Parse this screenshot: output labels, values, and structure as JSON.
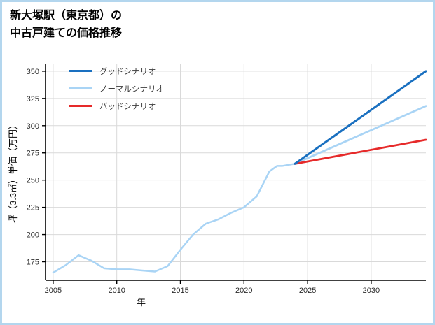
{
  "page": {
    "border_color": "#b3d6ee",
    "background": "#ffffff"
  },
  "title": {
    "line1": "新大塚駅（東京都）の",
    "line2": "中古戸建ての価格推移"
  },
  "chart_data": {
    "type": "line",
    "title": "新大塚駅（東京都）の中古戸建ての価格推移",
    "xlabel": "年",
    "ylabel": "坪（3.3㎡）単価（万円）",
    "xlim": [
      2004.4,
      2034.3
    ],
    "ylim": [
      158,
      357
    ],
    "xticks": [
      2005,
      2010,
      2015,
      2020,
      2025,
      2030
    ],
    "yticks": [
      175,
      200,
      225,
      250,
      275,
      300,
      325,
      350
    ],
    "grid": true,
    "grid_color": "#d9d9d9",
    "axis_color": "#000000",
    "legend_position": "upper-left-inside",
    "series": [
      {
        "id": "history",
        "color": "#a9d4f5",
        "legend": false,
        "width": 2.5,
        "x": [
          2005,
          2006,
          2007,
          2008,
          2009,
          2010,
          2011,
          2012,
          2013,
          2014,
          2015,
          2016,
          2017,
          2018,
          2019,
          2020,
          2021,
          2022,
          2022.6,
          2023,
          2024
        ],
        "y": [
          165,
          172,
          181,
          176,
          169,
          168,
          168,
          167,
          166,
          171,
          186,
          200,
          210,
          214,
          220,
          225,
          235,
          258,
          263,
          263,
          265
        ]
      },
      {
        "id": "normal",
        "name": "ノーマルシナリオ",
        "color": "#a9d4f5",
        "legend": true,
        "width": 2.8,
        "x": [
          2024,
          2034.3
        ],
        "y": [
          265,
          318
        ]
      },
      {
        "id": "bad",
        "name": "バッドシナリオ",
        "color": "#e62a2a",
        "legend": true,
        "width": 2.8,
        "x": [
          2024,
          2034.3
        ],
        "y": [
          265,
          287
        ]
      },
      {
        "id": "good",
        "name": "グッドシナリオ",
        "color": "#1a70c0",
        "legend": true,
        "width": 3,
        "x": [
          2024,
          2034.3
        ],
        "y": [
          265,
          350
        ]
      }
    ],
    "legend_order": [
      "good",
      "normal",
      "bad"
    ]
  }
}
